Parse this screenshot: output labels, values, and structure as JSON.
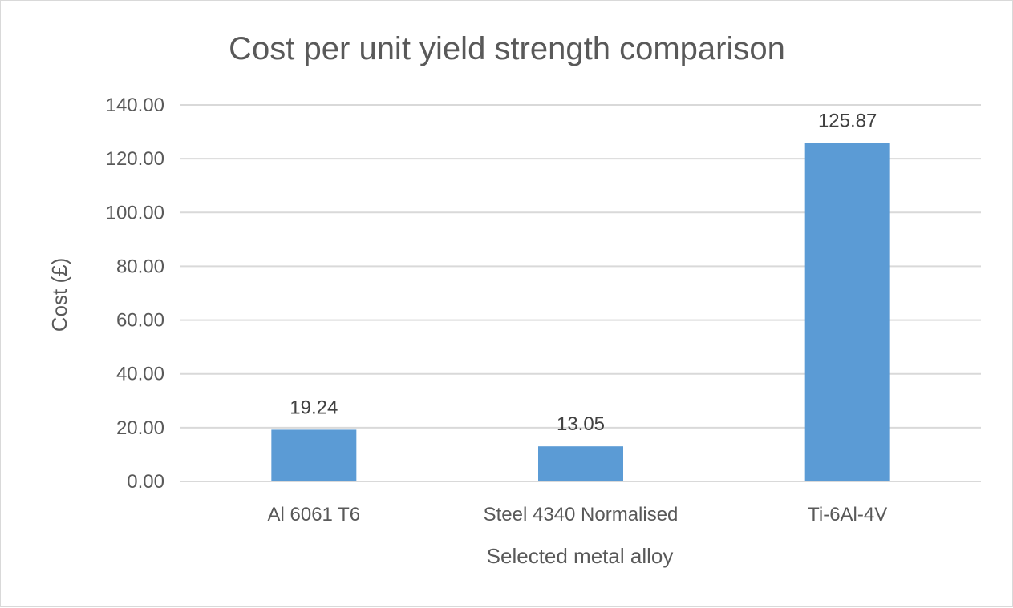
{
  "chart_data": {
    "type": "bar",
    "title": "Cost per unit yield strength comparison",
    "xlabel": "Selected metal alloy",
    "ylabel": "Cost (£)",
    "categories": [
      "Al 6061 T6",
      "Steel 4340 Normalised",
      "Ti-6Al-4V"
    ],
    "values": [
      19.24,
      13.05,
      125.87
    ],
    "data_labels": [
      "19.24",
      "13.05",
      "125.87"
    ],
    "ylim": [
      0,
      140
    ],
    "yticks": [
      "0.00",
      "20.00",
      "40.00",
      "60.00",
      "80.00",
      "100.00",
      "120.00",
      "140.00"
    ],
    "grid": true,
    "legend": "none",
    "bar_color": "#5b9bd5"
  }
}
